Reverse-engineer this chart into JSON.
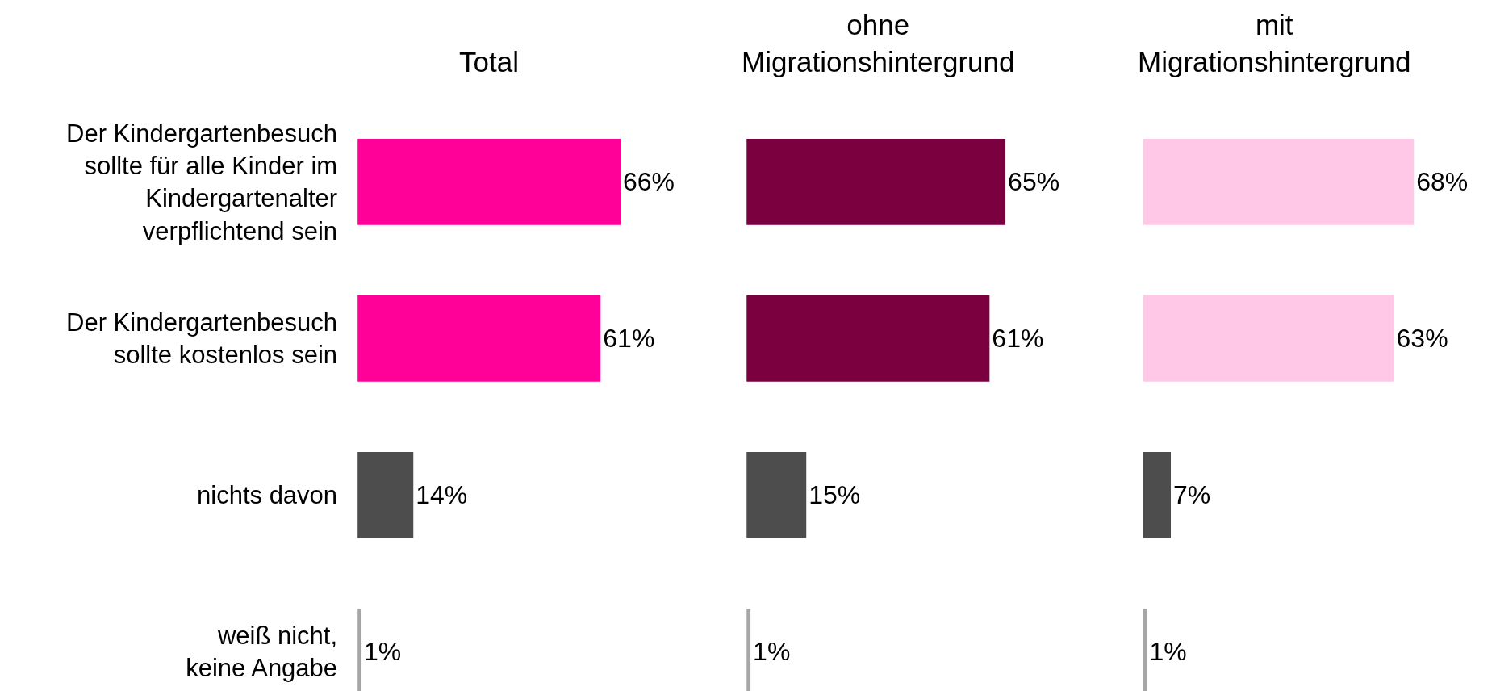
{
  "chart_data": [
    {
      "type": "bar",
      "orientation": "horizontal",
      "title": "Total",
      "categories": [
        "Der Kindergartenbesuch\nsollte für alle Kinder im\nKindergartenalter\nverpflichtend sein",
        "Der Kindergartenbesuch\nsollte kostenlos sein",
        "nichts davon",
        "weiß nicht,\nkeine Angabe"
      ],
      "values": [
        66,
        61,
        14,
        1
      ],
      "value_labels": [
        "66%",
        "61%",
        "14%",
        "1%"
      ],
      "colors": [
        "#ff0099",
        "#ff0099",
        "#4d4d4d",
        "#a6a6a6"
      ]
    },
    {
      "type": "bar",
      "orientation": "horizontal",
      "title": "ohne\nMigrationshintergrund",
      "categories": [
        null,
        null,
        null,
        null
      ],
      "values": [
        65,
        61,
        15,
        1
      ],
      "value_labels": [
        "65%",
        "61%",
        "15%",
        "1%"
      ],
      "colors": [
        "#7a0040",
        "#7a0040",
        "#4d4d4d",
        "#a6a6a6"
      ]
    },
    {
      "type": "bar",
      "orientation": "horizontal",
      "title": "mit\nMigrationshintergrund",
      "categories": [
        null,
        null,
        null,
        null
      ],
      "values": [
        68,
        63,
        7,
        1
      ],
      "value_labels": [
        "68%",
        "63%",
        "7%",
        "1%"
      ],
      "colors": [
        "#ffc8e6",
        "#ffc8e6",
        "#4d4d4d",
        "#a6a6a6"
      ]
    }
  ]
}
